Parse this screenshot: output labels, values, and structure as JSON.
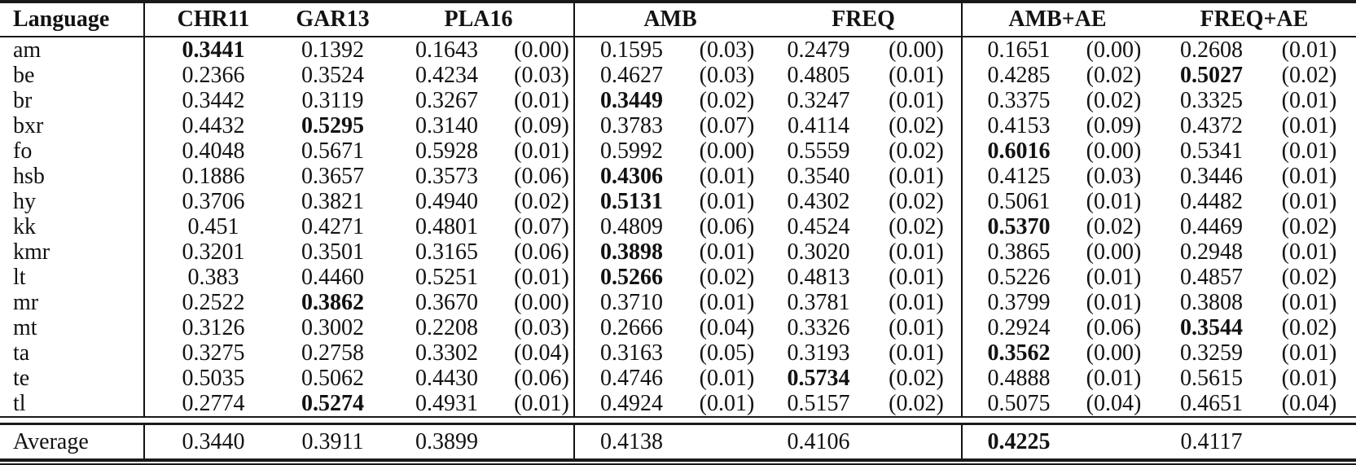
{
  "table": {
    "headers": [
      "Language",
      "CHR11",
      "GAR13",
      "PLA16",
      "AMB",
      "FREQ",
      "AMB+AE",
      "FREQ+AE"
    ],
    "rows": [
      {
        "lang": "am",
        "values": [
          "0.3441",
          "0.1392",
          "0.1643",
          "0.1595",
          "0.2479",
          "0.1651",
          "0.2608"
        ],
        "stds": [
          "(0.00)",
          "(0.03)",
          "(0.00)",
          "(0.00)",
          "(0.01)"
        ],
        "bold": 0
      },
      {
        "lang": "be",
        "values": [
          "0.2366",
          "0.3524",
          "0.4234",
          "0.4627",
          "0.4805",
          "0.4285",
          "0.5027"
        ],
        "stds": [
          "(0.03)",
          "(0.03)",
          "(0.01)",
          "(0.02)",
          "(0.02)"
        ],
        "bold": 6
      },
      {
        "lang": "br",
        "values": [
          "0.3442",
          "0.3119",
          "0.3267",
          "0.3449",
          "0.3247",
          "0.3375",
          "0.3325"
        ],
        "stds": [
          "(0.01)",
          "(0.02)",
          "(0.01)",
          "(0.02)",
          "(0.01)"
        ],
        "bold": 3
      },
      {
        "lang": "bxr",
        "values": [
          "0.4432",
          "0.5295",
          "0.3140",
          "0.3783",
          "0.4114",
          "0.4153",
          "0.4372"
        ],
        "stds": [
          "(0.09)",
          "(0.07)",
          "(0.02)",
          "(0.09)",
          "(0.01)"
        ],
        "bold": 1
      },
      {
        "lang": "fo",
        "values": [
          "0.4048",
          "0.5671",
          "0.5928",
          "0.5992",
          "0.5559",
          "0.6016",
          "0.5341"
        ],
        "stds": [
          "(0.01)",
          "(0.00)",
          "(0.02)",
          "(0.00)",
          "(0.01)"
        ],
        "bold": 5
      },
      {
        "lang": "hsb",
        "values": [
          "0.1886",
          "0.3657",
          "0.3573",
          "0.4306",
          "0.3540",
          "0.4125",
          "0.3446"
        ],
        "stds": [
          "(0.06)",
          "(0.01)",
          "(0.01)",
          "(0.03)",
          "(0.01)"
        ],
        "bold": 3
      },
      {
        "lang": "hy",
        "values": [
          "0.3706",
          "0.3821",
          "0.4940",
          "0.5131",
          "0.4302",
          "0.5061",
          "0.4482"
        ],
        "stds": [
          "(0.02)",
          "(0.01)",
          "(0.02)",
          "(0.01)",
          "(0.01)"
        ],
        "bold": 3
      },
      {
        "lang": "kk",
        "values": [
          "0.451",
          "0.4271",
          "0.4801",
          "0.4809",
          "0.4524",
          "0.5370",
          "0.4469"
        ],
        "stds": [
          "(0.07)",
          "(0.06)",
          "(0.02)",
          "(0.02)",
          "(0.02)"
        ],
        "bold": 5
      },
      {
        "lang": "kmr",
        "values": [
          "0.3201",
          "0.3501",
          "0.3165",
          "0.3898",
          "0.3020",
          "0.3865",
          "0.2948"
        ],
        "stds": [
          "(0.06)",
          "(0.01)",
          "(0.01)",
          "(0.00)",
          "(0.01)"
        ],
        "bold": 3
      },
      {
        "lang": "lt",
        "values": [
          "0.383",
          "0.4460",
          "0.5251",
          "0.5266",
          "0.4813",
          "0.5226",
          "0.4857"
        ],
        "stds": [
          "(0.01)",
          "(0.02)",
          "(0.01)",
          "(0.01)",
          "(0.02)"
        ],
        "bold": 3
      },
      {
        "lang": "mr",
        "values": [
          "0.2522",
          "0.3862",
          "0.3670",
          "0.3710",
          "0.3781",
          "0.3799",
          "0.3808"
        ],
        "stds": [
          "(0.00)",
          "(0.01)",
          "(0.01)",
          "(0.01)",
          "(0.01)"
        ],
        "bold": 1
      },
      {
        "lang": "mt",
        "values": [
          "0.3126",
          "0.3002",
          "0.2208",
          "0.2666",
          "0.3326",
          "0.2924",
          "0.3544"
        ],
        "stds": [
          "(0.03)",
          "(0.04)",
          "(0.01)",
          "(0.06)",
          "(0.02)"
        ],
        "bold": 6
      },
      {
        "lang": "ta",
        "values": [
          "0.3275",
          "0.2758",
          "0.3302",
          "0.3163",
          "0.3193",
          "0.3562",
          "0.3259"
        ],
        "stds": [
          "(0.04)",
          "(0.05)",
          "(0.01)",
          "(0.00)",
          "(0.01)"
        ],
        "bold": 5
      },
      {
        "lang": "te",
        "values": [
          "0.5035",
          "0.5062",
          "0.4430",
          "0.4746",
          "0.5734",
          "0.4888",
          "0.5615"
        ],
        "stds": [
          "(0.06)",
          "(0.01)",
          "(0.02)",
          "(0.01)",
          "(0.01)"
        ],
        "bold": 4
      },
      {
        "lang": "tl",
        "values": [
          "0.2774",
          "0.5274",
          "0.4931",
          "0.4924",
          "0.5157",
          "0.5075",
          "0.4651"
        ],
        "stds": [
          "(0.01)",
          "(0.01)",
          "(0.02)",
          "(0.04)",
          "(0.04)"
        ],
        "bold": 1
      }
    ],
    "average": {
      "lang": "Average",
      "values": [
        "0.3440",
        "0.3911",
        "0.3899",
        "0.4138",
        "0.4106",
        "0.4225",
        "0.4117"
      ],
      "stds": [],
      "bold": 5
    }
  }
}
